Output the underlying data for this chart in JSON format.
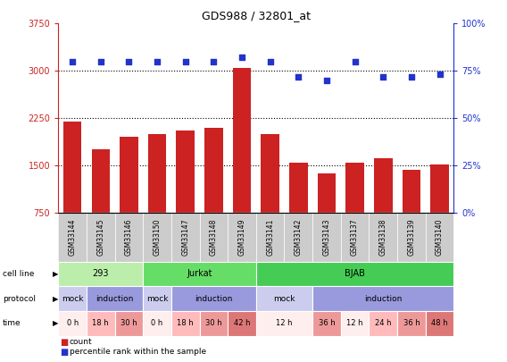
{
  "title": "GDS988 / 32801_at",
  "samples": [
    "GSM33144",
    "GSM33145",
    "GSM33146",
    "GSM33150",
    "GSM33147",
    "GSM33148",
    "GSM33149",
    "GSM33141",
    "GSM33142",
    "GSM33143",
    "GSM33137",
    "GSM33138",
    "GSM33139",
    "GSM33140"
  ],
  "counts": [
    2200,
    1750,
    1950,
    2000,
    2050,
    2100,
    3050,
    2000,
    1550,
    1380,
    1550,
    1620,
    1430,
    1520
  ],
  "percentiles": [
    80,
    80,
    80,
    80,
    80,
    80,
    82,
    80,
    72,
    70,
    80,
    72,
    72,
    73
  ],
  "ylim_left": [
    750,
    3750
  ],
  "ylim_right": [
    0,
    100
  ],
  "yticks_left": [
    750,
    1500,
    2250,
    3000,
    3750
  ],
  "yticks_right": [
    0,
    25,
    50,
    75,
    100
  ],
  "bar_color": "#cc2222",
  "dot_color": "#2233cc",
  "cell_line_groups": [
    {
      "label": "293",
      "start": 0,
      "end": 3,
      "color": "#bbeeaa"
    },
    {
      "label": "Jurkat",
      "start": 3,
      "end": 7,
      "color": "#66dd66"
    },
    {
      "label": "BJAB",
      "start": 7,
      "end": 14,
      "color": "#44cc55"
    }
  ],
  "protocol_groups": [
    {
      "label": "mock",
      "start": 0,
      "end": 1,
      "color": "#ccccee"
    },
    {
      "label": "induction",
      "start": 1,
      "end": 3,
      "color": "#9999dd"
    },
    {
      "label": "mock",
      "start": 3,
      "end": 4,
      "color": "#ccccee"
    },
    {
      "label": "induction",
      "start": 4,
      "end": 7,
      "color": "#9999dd"
    },
    {
      "label": "mock",
      "start": 7,
      "end": 9,
      "color": "#ccccee"
    },
    {
      "label": "induction",
      "start": 9,
      "end": 14,
      "color": "#9999dd"
    }
  ],
  "time_groups": [
    {
      "label": "0 h",
      "start": 0,
      "end": 1,
      "color": "#ffeeee"
    },
    {
      "label": "18 h",
      "start": 1,
      "end": 2,
      "color": "#ffbbbb"
    },
    {
      "label": "30 h",
      "start": 2,
      "end": 3,
      "color": "#ee9999"
    },
    {
      "label": "0 h",
      "start": 3,
      "end": 4,
      "color": "#ffeeee"
    },
    {
      "label": "18 h",
      "start": 4,
      "end": 5,
      "color": "#ffbbbb"
    },
    {
      "label": "30 h",
      "start": 5,
      "end": 6,
      "color": "#ee9999"
    },
    {
      "label": "42 h",
      "start": 6,
      "end": 7,
      "color": "#dd7777"
    },
    {
      "label": "12 h",
      "start": 7,
      "end": 9,
      "color": "#ffeeee"
    },
    {
      "label": "36 h",
      "start": 9,
      "end": 10,
      "color": "#ee9999"
    },
    {
      "label": "12 h",
      "start": 10,
      "end": 11,
      "color": "#ffeeee"
    },
    {
      "label": "24 h",
      "start": 11,
      "end": 12,
      "color": "#ffbbbb"
    },
    {
      "label": "36 h",
      "start": 12,
      "end": 13,
      "color": "#ee9999"
    },
    {
      "label": "48 h",
      "start": 13,
      "end": 14,
      "color": "#dd7777"
    }
  ],
  "background_color": "#ffffff",
  "left_axis_color": "#cc2222",
  "right_axis_color": "#2233cc"
}
